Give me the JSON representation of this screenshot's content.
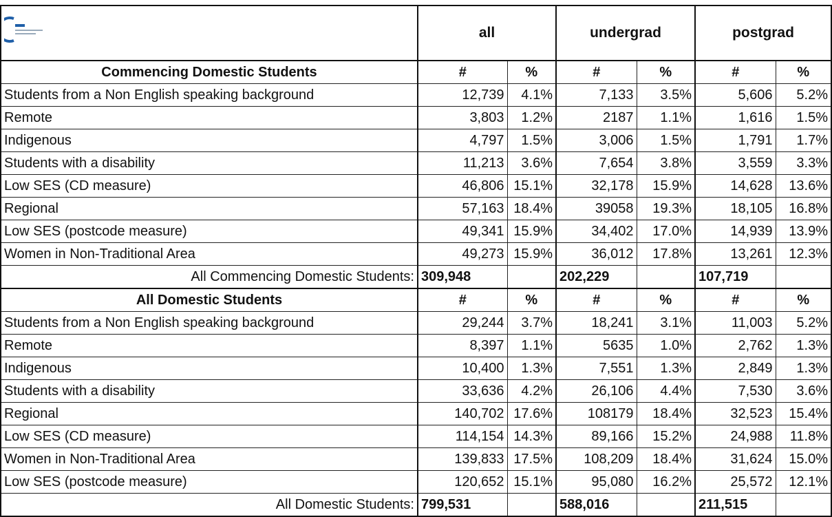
{
  "header": {
    "columns": [
      "all",
      "undergrad",
      "postgrad"
    ]
  },
  "sections": [
    {
      "title": "Commencing Domestic Students",
      "column_labels": [
        "#",
        "%",
        "#",
        "%",
        "#",
        "%"
      ],
      "rows": [
        {
          "label": "Students from a Non English speaking background",
          "values": [
            "12,739",
            "4.1%",
            "7,133",
            "3.5%",
            "5,606",
            "5.2%"
          ]
        },
        {
          "label": "Remote",
          "values": [
            "3,803",
            "1.2%",
            "2187",
            "1.1%",
            "1,616",
            "1.5%"
          ]
        },
        {
          "label": "Indigenous",
          "values": [
            "4,797",
            "1.5%",
            "3,006",
            "1.5%",
            "1,791",
            "1.7%"
          ]
        },
        {
          "label": "Students with a disability",
          "values": [
            "11,213",
            "3.6%",
            "7,654",
            "3.8%",
            "3,559",
            "3.3%"
          ]
        },
        {
          "label": "Low SES (CD measure)",
          "values": [
            "46,806",
            "15.1%",
            "32,178",
            "15.9%",
            "14,628",
            "13.6%"
          ]
        },
        {
          "label": "Regional",
          "values": [
            "57,163",
            "18.4%",
            "39058",
            "19.3%",
            "18,105",
            "16.8%"
          ]
        },
        {
          "label": "Low SES (postcode measure)",
          "values": [
            "49,341",
            "15.9%",
            "34,402",
            "17.0%",
            "14,939",
            "13.9%"
          ]
        },
        {
          "label": "Women in Non-Traditional Area",
          "values": [
            "49,273",
            "15.9%",
            "36,012",
            "17.8%",
            "13,261",
            "12.3%"
          ]
        }
      ],
      "total": {
        "label": "All Commencing Domestic Students:",
        "values": [
          "309,948",
          "202,229",
          "107,719"
        ]
      }
    },
    {
      "title": "All Domestic Students",
      "column_labels": [
        "#",
        "%",
        "#",
        "%",
        "#",
        "%"
      ],
      "rows": [
        {
          "label": "Students from a Non English speaking background",
          "values": [
            "29,244",
            "3.7%",
            "18,241",
            "3.1%",
            "11,003",
            "5.2%"
          ]
        },
        {
          "label": "Remote",
          "values": [
            "8,397",
            "1.1%",
            "5635",
            "1.0%",
            "2,762",
            "1.3%"
          ]
        },
        {
          "label": "Indigenous",
          "values": [
            "10,400",
            "1.3%",
            "7,551",
            "1.3%",
            "2,849",
            "1.3%"
          ]
        },
        {
          "label": "Students with a disability",
          "values": [
            "33,636",
            "4.2%",
            "26,106",
            "4.4%",
            "7,530",
            "3.6%"
          ]
        },
        {
          "label": "Regional",
          "values": [
            "140,702",
            "17.6%",
            "108179",
            "18.4%",
            "32,523",
            "15.4%"
          ]
        },
        {
          "label": "Low SES (CD measure)",
          "values": [
            "114,154",
            "14.3%",
            "89,166",
            "15.2%",
            "24,988",
            "11.8%"
          ]
        },
        {
          "label": "Women in Non-Traditional Area",
          "values": [
            "139,833",
            "17.5%",
            "108,209",
            "18.4%",
            "31,624",
            "15.0%"
          ]
        },
        {
          "label": "Low SES (postcode measure)",
          "values": [
            "120,652",
            "15.1%",
            "95,080",
            "16.2%",
            "25,572",
            "12.1%"
          ]
        }
      ],
      "total": {
        "label": "All Domestic Students:",
        "values": [
          "799,531",
          "588,016",
          "211,515"
        ]
      }
    }
  ]
}
